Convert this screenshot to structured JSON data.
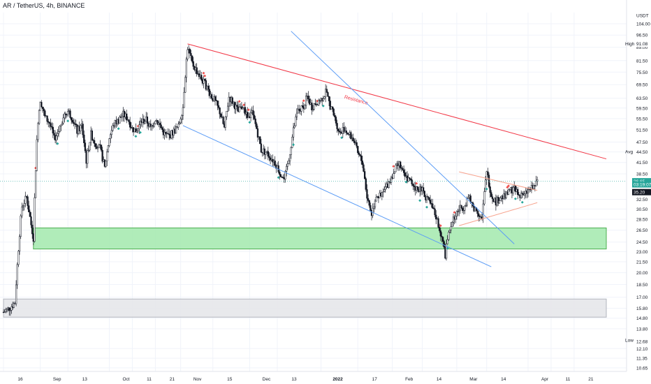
{
  "header": {
    "title": "AR / TetherUS, 4h, BINANCE"
  },
  "chart_data": {
    "type": "candlestick",
    "y_unit": "USDT",
    "y_scale": "log",
    "y_ticks": [
      104.0,
      96.5,
      89.0,
      81.5,
      75.5,
      69.5,
      63.5,
      59.5,
      55.5,
      51.5,
      47.5,
      44.5,
      41.5,
      38.5,
      32.5,
      30.5,
      28.5,
      26.5,
      24.5,
      23.0,
      21.5,
      20.0,
      18.5,
      17.0,
      15.8,
      14.8,
      13.8,
      12.1,
      11.35,
      10.65
    ],
    "y_range": [
      10.4,
      112
    ],
    "x_ticks": [
      {
        "label": "16",
        "t": 0
      },
      {
        "label": "Sep",
        "t": 16
      },
      {
        "label": "13",
        "t": 28
      },
      {
        "label": "Oct",
        "t": 46
      },
      {
        "label": "11",
        "t": 56
      },
      {
        "label": "21",
        "t": 66
      },
      {
        "label": "Nov",
        "t": 77
      },
      {
        "label": "15",
        "t": 91
      },
      {
        "label": "Dec",
        "t": 107
      },
      {
        "label": "13",
        "t": 119
      },
      {
        "label": "2022",
        "t": 138
      },
      {
        "label": "17",
        "t": 154
      },
      {
        "label": "Feb",
        "t": 169
      },
      {
        "label": "14",
        "t": 182
      },
      {
        "label": "Mar",
        "t": 197
      },
      {
        "label": "14",
        "t": 210
      },
      {
        "label": "Apr",
        "t": 228
      },
      {
        "label": "11",
        "t": 238
      },
      {
        "label": "21",
        "t": 248
      }
    ],
    "x_range": [
      0,
      262
    ],
    "price_path": [
      [
        0,
        15.4
      ],
      [
        3,
        15.9
      ],
      [
        5,
        16.4
      ],
      [
        6,
        21
      ],
      [
        8,
        31
      ],
      [
        10,
        33
      ],
      [
        12,
        27.5
      ],
      [
        13,
        25.2
      ],
      [
        14,
        40
      ],
      [
        15,
        55
      ],
      [
        16,
        63
      ],
      [
        18,
        56
      ],
      [
        20,
        54
      ],
      [
        22,
        48.5
      ],
      [
        24,
        51
      ],
      [
        26,
        56.5
      ],
      [
        28,
        58.5
      ],
      [
        30,
        55.5
      ],
      [
        32,
        51
      ],
      [
        34,
        53
      ],
      [
        36,
        42
      ],
      [
        38,
        50
      ],
      [
        40,
        47
      ],
      [
        42,
        45.5
      ],
      [
        44,
        40
      ],
      [
        46,
        49
      ],
      [
        48,
        53.5
      ],
      [
        50,
        55
      ],
      [
        52,
        57
      ],
      [
        54,
        55.5
      ],
      [
        56,
        52
      ],
      [
        58,
        51
      ],
      [
        60,
        54.5
      ],
      [
        62,
        55
      ],
      [
        64,
        52
      ],
      [
        66,
        55.5
      ],
      [
        68,
        53
      ],
      [
        70,
        50
      ],
      [
        72,
        49.5
      ],
      [
        74,
        51
      ],
      [
        76,
        52.5
      ],
      [
        78,
        60
      ],
      [
        80,
        89
      ],
      [
        82,
        80
      ],
      [
        84,
        76
      ],
      [
        86,
        72
      ],
      [
        88,
        69
      ],
      [
        90,
        65
      ],
      [
        92,
        62
      ],
      [
        94,
        58
      ],
      [
        96,
        52
      ],
      [
        98,
        64
      ],
      [
        100,
        61.5
      ],
      [
        102,
        58
      ],
      [
        104,
        60.5
      ],
      [
        106,
        55.5
      ],
      [
        108,
        57.5
      ],
      [
        110,
        52
      ],
      [
        112,
        45
      ],
      [
        114,
        44.5
      ],
      [
        116,
        43
      ],
      [
        118,
        41.5
      ],
      [
        120,
        39
      ],
      [
        122,
        37
      ],
      [
        124,
        42
      ],
      [
        126,
        51.5
      ],
      [
        128,
        58.5
      ],
      [
        130,
        59.5
      ],
      [
        132,
        64
      ],
      [
        134,
        60
      ],
      [
        136,
        62
      ],
      [
        138,
        63
      ],
      [
        140,
        66
      ],
      [
        142,
        60.5
      ],
      [
        144,
        55.5
      ],
      [
        146,
        50.5
      ],
      [
        148,
        52
      ],
      [
        150,
        50
      ],
      [
        152,
        48.5
      ],
      [
        154,
        44
      ],
      [
        156,
        41.5
      ],
      [
        158,
        33
      ],
      [
        160,
        29.5
      ],
      [
        162,
        33.5
      ],
      [
        164,
        33
      ],
      [
        166,
        35
      ],
      [
        168,
        37
      ],
      [
        170,
        39.5
      ],
      [
        172,
        41
      ],
      [
        174,
        38
      ],
      [
        176,
        37
      ],
      [
        178,
        36
      ],
      [
        180,
        34.5
      ],
      [
        182,
        35
      ],
      [
        184,
        32.5
      ],
      [
        186,
        31
      ],
      [
        188,
        29
      ],
      [
        190,
        26
      ],
      [
        192,
        22.5
      ],
      [
        194,
        27
      ],
      [
        196,
        29
      ],
      [
        198,
        30.5
      ],
      [
        200,
        31
      ],
      [
        202,
        33
      ],
      [
        204,
        31
      ],
      [
        206,
        30
      ],
      [
        208,
        28.5
      ],
      [
        210,
        39
      ],
      [
        212,
        33.5
      ],
      [
        214,
        32
      ],
      [
        216,
        33
      ],
      [
        218,
        33
      ],
      [
        220,
        34.5
      ],
      [
        222,
        35
      ],
      [
        224,
        33.5
      ],
      [
        226,
        33
      ],
      [
        228,
        34.5
      ],
      [
        230,
        35
      ],
      [
        232,
        36.5
      ]
    ],
    "trendlines": [
      {
        "name": "Resistance",
        "color": "#f23645",
        "label_color": "#f23645",
        "from": [
          80,
          91
        ],
        "to": [
          262,
          42.5
        ],
        "label_at": [
          148,
          63.5
        ]
      },
      {
        "color": "#5b9cf6",
        "from": [
          78,
          53
        ],
        "to": [
          212,
          20.8
        ]
      },
      {
        "color": "#5b9cf6",
        "from": [
          125,
          99
        ],
        "to": [
          222,
          24.2
        ]
      },
      {
        "color": "#f7a28c",
        "from": [
          198,
          39
        ],
        "to": [
          232,
          34.5
        ]
      },
      {
        "color": "#f7a28c",
        "from": [
          198,
          27.3
        ],
        "to": [
          232,
          31.8
        ]
      }
    ],
    "zones": [
      {
        "color": "#a7eab1",
        "border": "#4caf50",
        "t1": 13,
        "t2": 262,
        "y1": 23.4,
        "y2": 26.9
      },
      {
        "color": "#e6e7ea",
        "border": "#b2b5be",
        "t1": 0,
        "t2": 262,
        "y1": 14.9,
        "y2": 16.8
      }
    ],
    "level_labels": [
      {
        "label": "High",
        "y": 91.08
      },
      {
        "label": "Avg",
        "y": 44.6
      },
      {
        "label": "Low",
        "y": 12.8
      }
    ],
    "price_labels": [
      {
        "label": "USDT",
        "y": 110,
        "kind": "unit"
      },
      {
        "label": "91.08",
        "y": 91.08,
        "kind": "plain"
      },
      {
        "label": "36.65",
        "y": 36.65,
        "kind": "green"
      },
      {
        "label": "03:19:07",
        "y": 35.9,
        "kind": "green"
      },
      {
        "label": "35.20",
        "y": 34.1,
        "kind": "dark"
      },
      {
        "label": "12.68",
        "y": 12.68,
        "kind": "plain"
      }
    ],
    "current_price": 36.65,
    "colors": {
      "up": "#26a69a",
      "down": "#ef5350",
      "candle": "#131722",
      "axis_text": "#131722",
      "price_line": "#26a69a"
    }
  }
}
